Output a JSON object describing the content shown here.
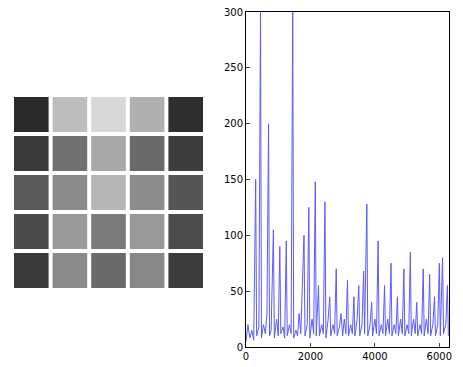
{
  "chart_data": {
    "type": "line",
    "color": "#5b5bff",
    "x": [
      0,
      60,
      120,
      180,
      240,
      300,
      330,
      400,
      450,
      480,
      540,
      600,
      650,
      700,
      730,
      780,
      850,
      880,
      950,
      1000,
      1050,
      1080,
      1150,
      1200,
      1250,
      1280,
      1350,
      1400,
      1450,
      1480,
      1550,
      1600,
      1650,
      1700,
      1800,
      1830,
      1900,
      1950,
      1980,
      2050,
      2100,
      2150,
      2180,
      2250,
      2280,
      2350,
      2400,
      2450,
      2480,
      2550,
      2600,
      2630,
      2700,
      2750,
      2800,
      2830,
      2900,
      2950,
      3000,
      3050,
      3100,
      3150,
      3180,
      3250,
      3300,
      3350,
      3380,
      3450,
      3500,
      3530,
      3600,
      3650,
      3680,
      3750,
      3780,
      3850,
      3900,
      3930,
      4000,
      4050,
      4100,
      4130,
      4200,
      4250,
      4300,
      4330,
      4400,
      4450,
      4500,
      4530,
      4600,
      4650,
      4700,
      4730,
      4800,
      4850,
      4900,
      4930,
      5000,
      5050,
      5100,
      5130,
      5200,
      5250,
      5300,
      5330,
      5400,
      5450,
      5500,
      5530,
      5600,
      5650,
      5700,
      5730,
      5800,
      5850,
      5880,
      5950,
      6000,
      6030,
      6100,
      6130,
      6200,
      6250,
      6280
    ],
    "values": [
      5,
      20,
      8,
      15,
      6,
      150,
      10,
      18,
      300,
      8,
      20,
      12,
      30,
      200,
      10,
      15,
      105,
      8,
      25,
      10,
      90,
      12,
      18,
      8,
      95,
      10,
      20,
      12,
      300,
      8,
      15,
      10,
      30,
      12,
      100,
      10,
      20,
      125,
      8,
      25,
      12,
      148,
      10,
      55,
      10,
      20,
      12,
      130,
      8,
      25,
      45,
      10,
      20,
      12,
      70,
      10,
      18,
      30,
      10,
      25,
      12,
      60,
      10,
      20,
      12,
      45,
      10,
      25,
      55,
      10,
      20,
      68,
      12,
      128,
      10,
      20,
      40,
      10,
      25,
      12,
      95,
      10,
      20,
      12,
      55,
      10,
      25,
      12,
      75,
      10,
      20,
      12,
      45,
      10,
      25,
      12,
      70,
      10,
      20,
      12,
      85,
      10,
      25,
      12,
      40,
      10,
      20,
      12,
      70,
      10,
      25,
      12,
      65,
      10,
      20,
      45,
      10,
      20,
      75,
      10,
      80,
      12,
      20,
      55,
      10
    ],
    "xlim": [
      0,
      6300
    ],
    "xticks": [
      0,
      2000,
      4000,
      6000
    ],
    "ylim": [
      0,
      300
    ],
    "yticks": [
      0,
      50,
      100,
      150,
      200,
      250,
      300
    ],
    "grid": false
  }
}
